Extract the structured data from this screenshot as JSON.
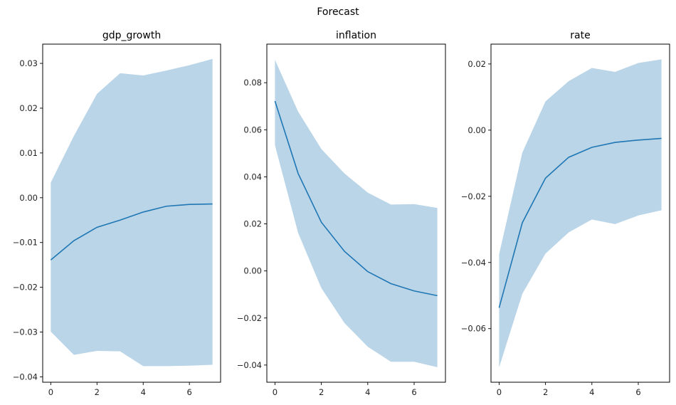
{
  "chart_data": {
    "type": "line",
    "title": "Forecast",
    "colors": {
      "line": "#1f77b4",
      "band": "#bad5e8"
    },
    "subplots": [
      {
        "title": "gdp_growth",
        "x": [
          0,
          1,
          2,
          3,
          4,
          5,
          6,
          7
        ],
        "xticks": [
          0,
          2,
          4,
          6
        ],
        "xlim": [
          -0.35,
          7.35
        ],
        "ylim": [
          -0.0412,
          0.0343
        ],
        "yticks": [
          -0.04,
          -0.03,
          -0.02,
          -0.01,
          0.0,
          0.01,
          0.02,
          0.03
        ],
        "ytick_labels": [
          "−0.04",
          "−0.03",
          "−0.02",
          "−0.01",
          "0.00",
          "0.01",
          "0.02",
          "0.03"
        ],
        "mean": [
          -0.0139,
          -0.0096,
          -0.0066,
          -0.005,
          -0.0032,
          -0.0019,
          -0.0015,
          -0.0014
        ],
        "upper": [
          0.0034,
          0.0138,
          0.0232,
          0.0278,
          0.0273,
          0.0284,
          0.0296,
          0.031
        ],
        "lower": [
          -0.0299,
          -0.0351,
          -0.0342,
          -0.0343,
          -0.0376,
          -0.0376,
          -0.0375,
          -0.0373
        ]
      },
      {
        "title": "inflation",
        "x": [
          0,
          1,
          2,
          3,
          4,
          5,
          6,
          7
        ],
        "xticks": [
          0,
          2,
          4,
          6
        ],
        "xlim": [
          -0.35,
          7.35
        ],
        "ylim": [
          -0.0473,
          0.0964
        ],
        "yticks": [
          -0.04,
          -0.02,
          0.0,
          0.02,
          0.04,
          0.06,
          0.08
        ],
        "ytick_labels": [
          "−0.04",
          "−0.02",
          "0.00",
          "0.02",
          "0.04",
          "0.06",
          "0.08"
        ],
        "mean": [
          0.0722,
          0.0414,
          0.0207,
          0.0083,
          -0.0003,
          -0.0054,
          -0.0085,
          -0.0105
        ],
        "upper": [
          0.0897,
          0.0677,
          0.0518,
          0.0414,
          0.0333,
          0.0282,
          0.0284,
          0.0268
        ],
        "lower": [
          0.0534,
          0.0161,
          -0.0073,
          -0.0222,
          -0.0322,
          -0.0386,
          -0.0386,
          -0.0409
        ]
      },
      {
        "title": "rate",
        "x": [
          0,
          1,
          2,
          3,
          4,
          5,
          6,
          7
        ],
        "xticks": [
          0,
          2,
          4,
          6
        ],
        "xlim": [
          -0.35,
          7.35
        ],
        "ylim": [
          -0.0762,
          0.026
        ],
        "yticks": [
          -0.06,
          -0.04,
          -0.02,
          0.0,
          0.02
        ],
        "ytick_labels": [
          "−0.06",
          "−0.04",
          "−0.02",
          "0.00",
          "0.02"
        ],
        "mean": [
          -0.0537,
          -0.028,
          -0.0145,
          -0.0082,
          -0.0052,
          -0.0037,
          -0.003,
          -0.0025
        ],
        "upper": [
          -0.0375,
          -0.0068,
          0.0087,
          0.0148,
          0.0188,
          0.0176,
          0.0203,
          0.0214
        ],
        "lower": [
          -0.0717,
          -0.0495,
          -0.0373,
          -0.0309,
          -0.027,
          -0.0284,
          -0.0258,
          -0.0242
        ]
      }
    ]
  }
}
